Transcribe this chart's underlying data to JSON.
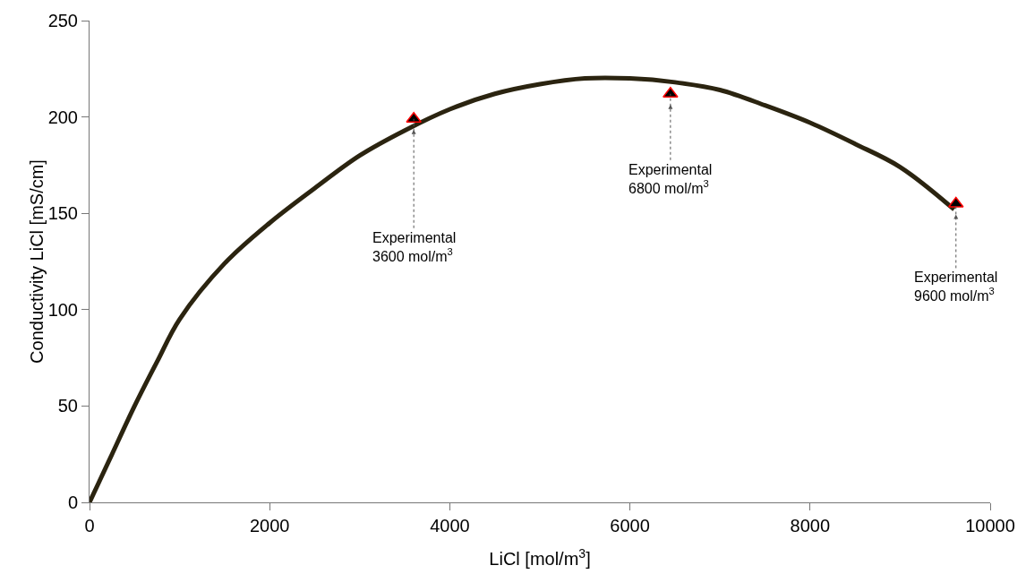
{
  "chart_data": {
    "type": "line",
    "xlabel": "LiCl [mol/m$^{3}$]",
    "ylabel": "Conductivity LiCl [mS/cm]",
    "xlim": [
      0,
      10000
    ],
    "xticks": [
      0,
      2000,
      4000,
      6000,
      8000,
      10000
    ],
    "ylim": [
      0,
      250
    ],
    "yticks": [
      0,
      50,
      100,
      150,
      200,
      250
    ],
    "grid": false,
    "series": [
      {
        "color": "#2b2410",
        "marker": "none",
        "x": [
          0,
          100,
          250,
          500,
          750,
          1000,
          1500,
          2000,
          2500,
          3000,
          3500,
          4000,
          4500,
          5000,
          5500,
          6000,
          6500,
          7000,
          7500,
          8000,
          8500,
          9000,
          9600
        ],
        "values": [
          0,
          10,
          25,
          50,
          73,
          95,
          124,
          145,
          163,
          180,
          193,
          204,
          212,
          217,
          220,
          220,
          218,
          214,
          206,
          197,
          186,
          174,
          152
        ]
      },
      {
        "type": "scatter",
        "color": "#000000",
        "marker": "triangle",
        "x": [
          3600,
          6450,
          9620
        ],
        "values": [
          199,
          212,
          155
        ]
      }
    ],
    "annotations": [
      {
        "text": "Experimental\n3600 mol/m$^{3}$",
        "x": 3600,
        "y": 199
      },
      {
        "text": "Experimental\n6800 mol/m$^{3}$",
        "x": 6450,
        "y": 212
      },
      {
        "text": "Experimental\n9600 mol/m$^{3}$",
        "x": 9620,
        "y": 155
      }
    ]
  }
}
